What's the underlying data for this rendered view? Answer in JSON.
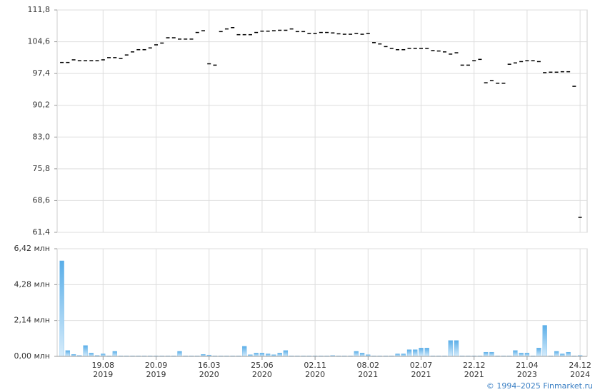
{
  "chart_data": [
    {
      "type": "candlestick",
      "color": "#000000",
      "ylim": [
        61.4,
        111.8
      ],
      "yticks": [
        {
          "value": 61.4,
          "label": "61,4"
        },
        {
          "value": 68.6,
          "label": "68,6"
        },
        {
          "value": 75.8,
          "label": "75,8"
        },
        {
          "value": 83.0,
          "label": "83,0"
        },
        {
          "value": 90.2,
          "label": "90,2"
        },
        {
          "value": 97.4,
          "label": "97,4"
        },
        {
          "value": 104.6,
          "label": "104,6"
        },
        {
          "value": 111.8,
          "label": "111,8"
        }
      ],
      "grid": true,
      "values": [
        99.9,
        99.9,
        100.5,
        100.3,
        100.3,
        100.3,
        100.3,
        100.5,
        101,
        101,
        100.8,
        101.6,
        102.3,
        102.8,
        102.8,
        103.2,
        103.9,
        104.3,
        105.5,
        105.5,
        105.2,
        105.2,
        105.2,
        106.7,
        107.1,
        99.6,
        99.3,
        106.9,
        107.5,
        107.8,
        106.2,
        106.2,
        106.2,
        106.7,
        107,
        107,
        107.1,
        107.2,
        107.2,
        107.5,
        106.9,
        106.9,
        106.5,
        106.5,
        106.7,
        106.7,
        106.6,
        106.4,
        106.3,
        106.3,
        106.5,
        106.3,
        106.5,
        104.4,
        104.1,
        103.5,
        103.1,
        102.8,
        102.8,
        103.1,
        103.1,
        103.1,
        103.1,
        102.6,
        102.5,
        102.3,
        101.8,
        102.1,
        99.3,
        99.3,
        100.3,
        100.6,
        95.3,
        95.8,
        95.2,
        95.2,
        99.5,
        99.8,
        100.1,
        100.3,
        100.3,
        100.1,
        97.6,
        97.7,
        97.7,
        97.8,
        97.8,
        94.5,
        64.8
      ]
    },
    {
      "type": "bar",
      "color": "#5aaee8",
      "ylim": [
        0,
        6.42
      ],
      "yticks": [
        {
          "value": 0,
          "label": "0,00 млн"
        },
        {
          "value": 2.14,
          "label": "2,14 млн"
        },
        {
          "value": 4.28,
          "label": "4,28 млн"
        },
        {
          "value": 6.42,
          "label": "6,42 млн"
        }
      ],
      "grid": true,
      "categories": [
        null,
        null,
        null,
        null,
        null,
        null,
        null,
        "19.08\n2019",
        null,
        null,
        null,
        null,
        null,
        null,
        null,
        null,
        "20.09\n2019",
        null,
        null,
        null,
        null,
        null,
        null,
        null,
        null,
        "16.03\n2020",
        null,
        null,
        null,
        null,
        null,
        null,
        null,
        null,
        "25.06\n2020",
        null,
        null,
        null,
        null,
        null,
        null,
        null,
        null,
        "02.11\n2020",
        null,
        null,
        null,
        null,
        null,
        null,
        null,
        null,
        "08.02\n2021",
        null,
        null,
        null,
        null,
        null,
        null,
        null,
        null,
        "02.07\n2021",
        null,
        null,
        null,
        null,
        null,
        null,
        null,
        null,
        "22.12\n2021",
        null,
        null,
        null,
        null,
        null,
        null,
        null,
        null,
        "21.04\n2023",
        null,
        null,
        null,
        null,
        null,
        null,
        null,
        null,
        "24.12\n2024"
      ],
      "values": [
        5.7,
        0.35,
        0.12,
        0.05,
        0.65,
        0.2,
        0.05,
        0.15,
        0.03,
        0.3,
        0.03,
        0.03,
        0.03,
        0.03,
        0.03,
        0.03,
        0.03,
        0.03,
        0.03,
        0.03,
        0.3,
        0.03,
        0.03,
        0.03,
        0.12,
        0.08,
        0.03,
        0.03,
        0.03,
        0.03,
        0.03,
        0.6,
        0.1,
        0.2,
        0.2,
        0.15,
        0.1,
        0.2,
        0.35,
        0.03,
        0.03,
        0.03,
        0.03,
        0.03,
        0.03,
        0.03,
        0.05,
        0.03,
        0.03,
        0.03,
        0.3,
        0.2,
        0.1,
        0.03,
        0.03,
        0.03,
        0.03,
        0.15,
        0.15,
        0.4,
        0.4,
        0.5,
        0.5,
        0.03,
        0.03,
        0.03,
        0.95,
        0.95,
        0.03,
        0.03,
        0.03,
        0.03,
        0.25,
        0.25,
        0.03,
        0.03,
        0.03,
        0.35,
        0.2,
        0.2,
        0.03,
        0.5,
        1.85,
        0.03,
        0.3,
        0.15,
        0.25,
        0.03,
        0.05
      ]
    }
  ],
  "footer": "© 1994–2025 Finmarket.ru"
}
